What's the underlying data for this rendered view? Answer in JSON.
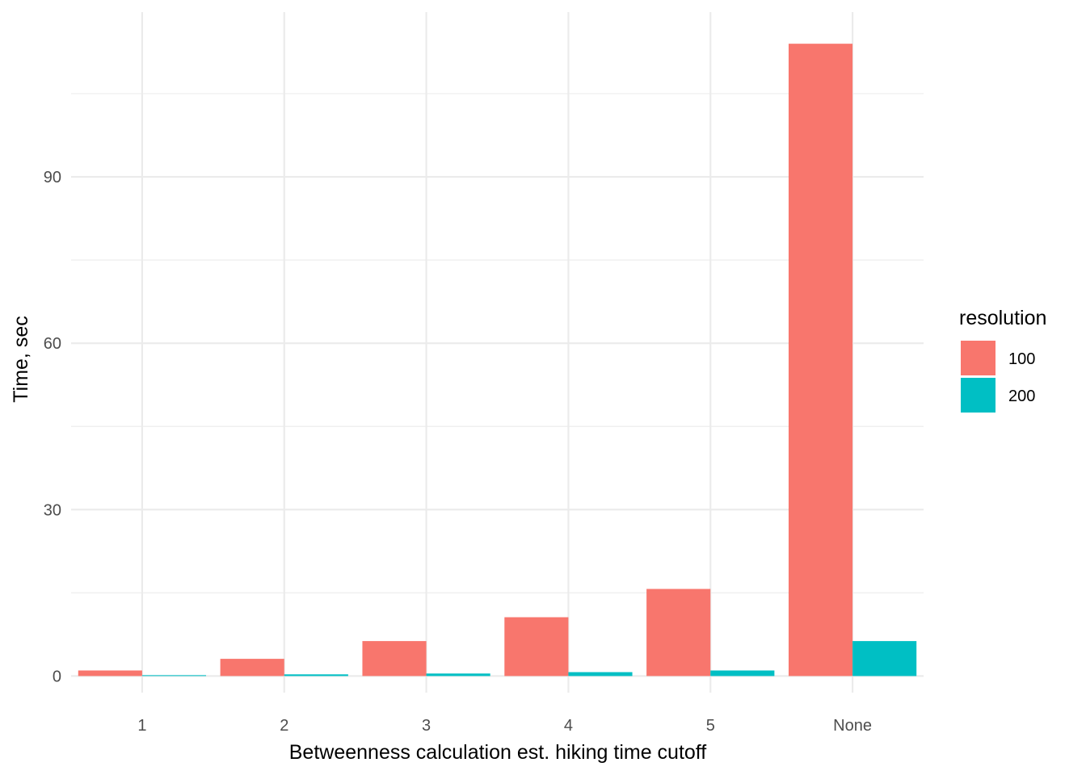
{
  "chart_data": {
    "type": "bar",
    "title": "",
    "xlabel": "Betweenness calculation est. hiking time cutoff",
    "ylabel": "Time, sec",
    "categories": [
      "1",
      "2",
      "3",
      "4",
      "5",
      "None"
    ],
    "series": [
      {
        "name": "100",
        "color": "#F8766D",
        "values": [
          1.0,
          3.1,
          6.3,
          10.6,
          15.7,
          114.0
        ]
      },
      {
        "name": "200",
        "color": "#00BFC4",
        "values": [
          0.15,
          0.3,
          0.45,
          0.7,
          1.0,
          6.3
        ]
      }
    ],
    "ylim": [
      -3,
      119.7
    ],
    "yticks": [
      0,
      30,
      60,
      90
    ],
    "grid": true,
    "legend": {
      "title": "resolution",
      "placement": "right"
    }
  }
}
